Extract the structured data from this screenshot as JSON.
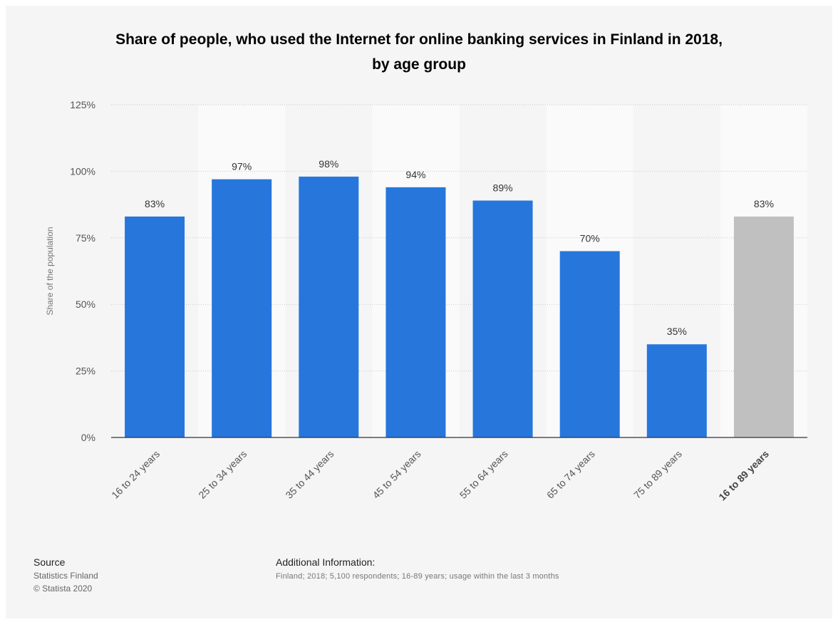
{
  "chart_data": {
    "type": "bar",
    "title_lines": [
      "Share of people, who used the Internet for online banking services in Finland in 2018,",
      "by age group"
    ],
    "categories": [
      "16 to 24 years",
      "25 to 34 years",
      "35 to 44 years",
      "45 to 54 years",
      "55 to 64 years",
      "65 to 74 years",
      "75 to 89 years",
      "16 to 89 years"
    ],
    "values": [
      83,
      97,
      98,
      94,
      89,
      70,
      35,
      83
    ],
    "value_labels": [
      "83%",
      "97%",
      "98%",
      "94%",
      "89%",
      "70%",
      "35%",
      "83%"
    ],
    "highlight_category": "16 to 89 years",
    "ylabel": "Share of the population",
    "ylim": [
      0,
      125
    ],
    "y_ticks": [
      0,
      25,
      50,
      75,
      100,
      125
    ],
    "y_tick_labels": [
      "0%",
      "25%",
      "50%",
      "75%",
      "100%",
      "125%"
    ],
    "grid": true,
    "colors": {
      "bar": "#2776dc",
      "highlight_bar": "#c0c0c0"
    }
  },
  "footer": {
    "source_heading": "Source",
    "source_lines": [
      "Statistics Finland",
      "© Statista 2020"
    ],
    "additional_heading": "Additional Information:",
    "additional_text": "Finland; 2018; 5,100 respondents; 16-89 years; usage within the last 3 months"
  }
}
